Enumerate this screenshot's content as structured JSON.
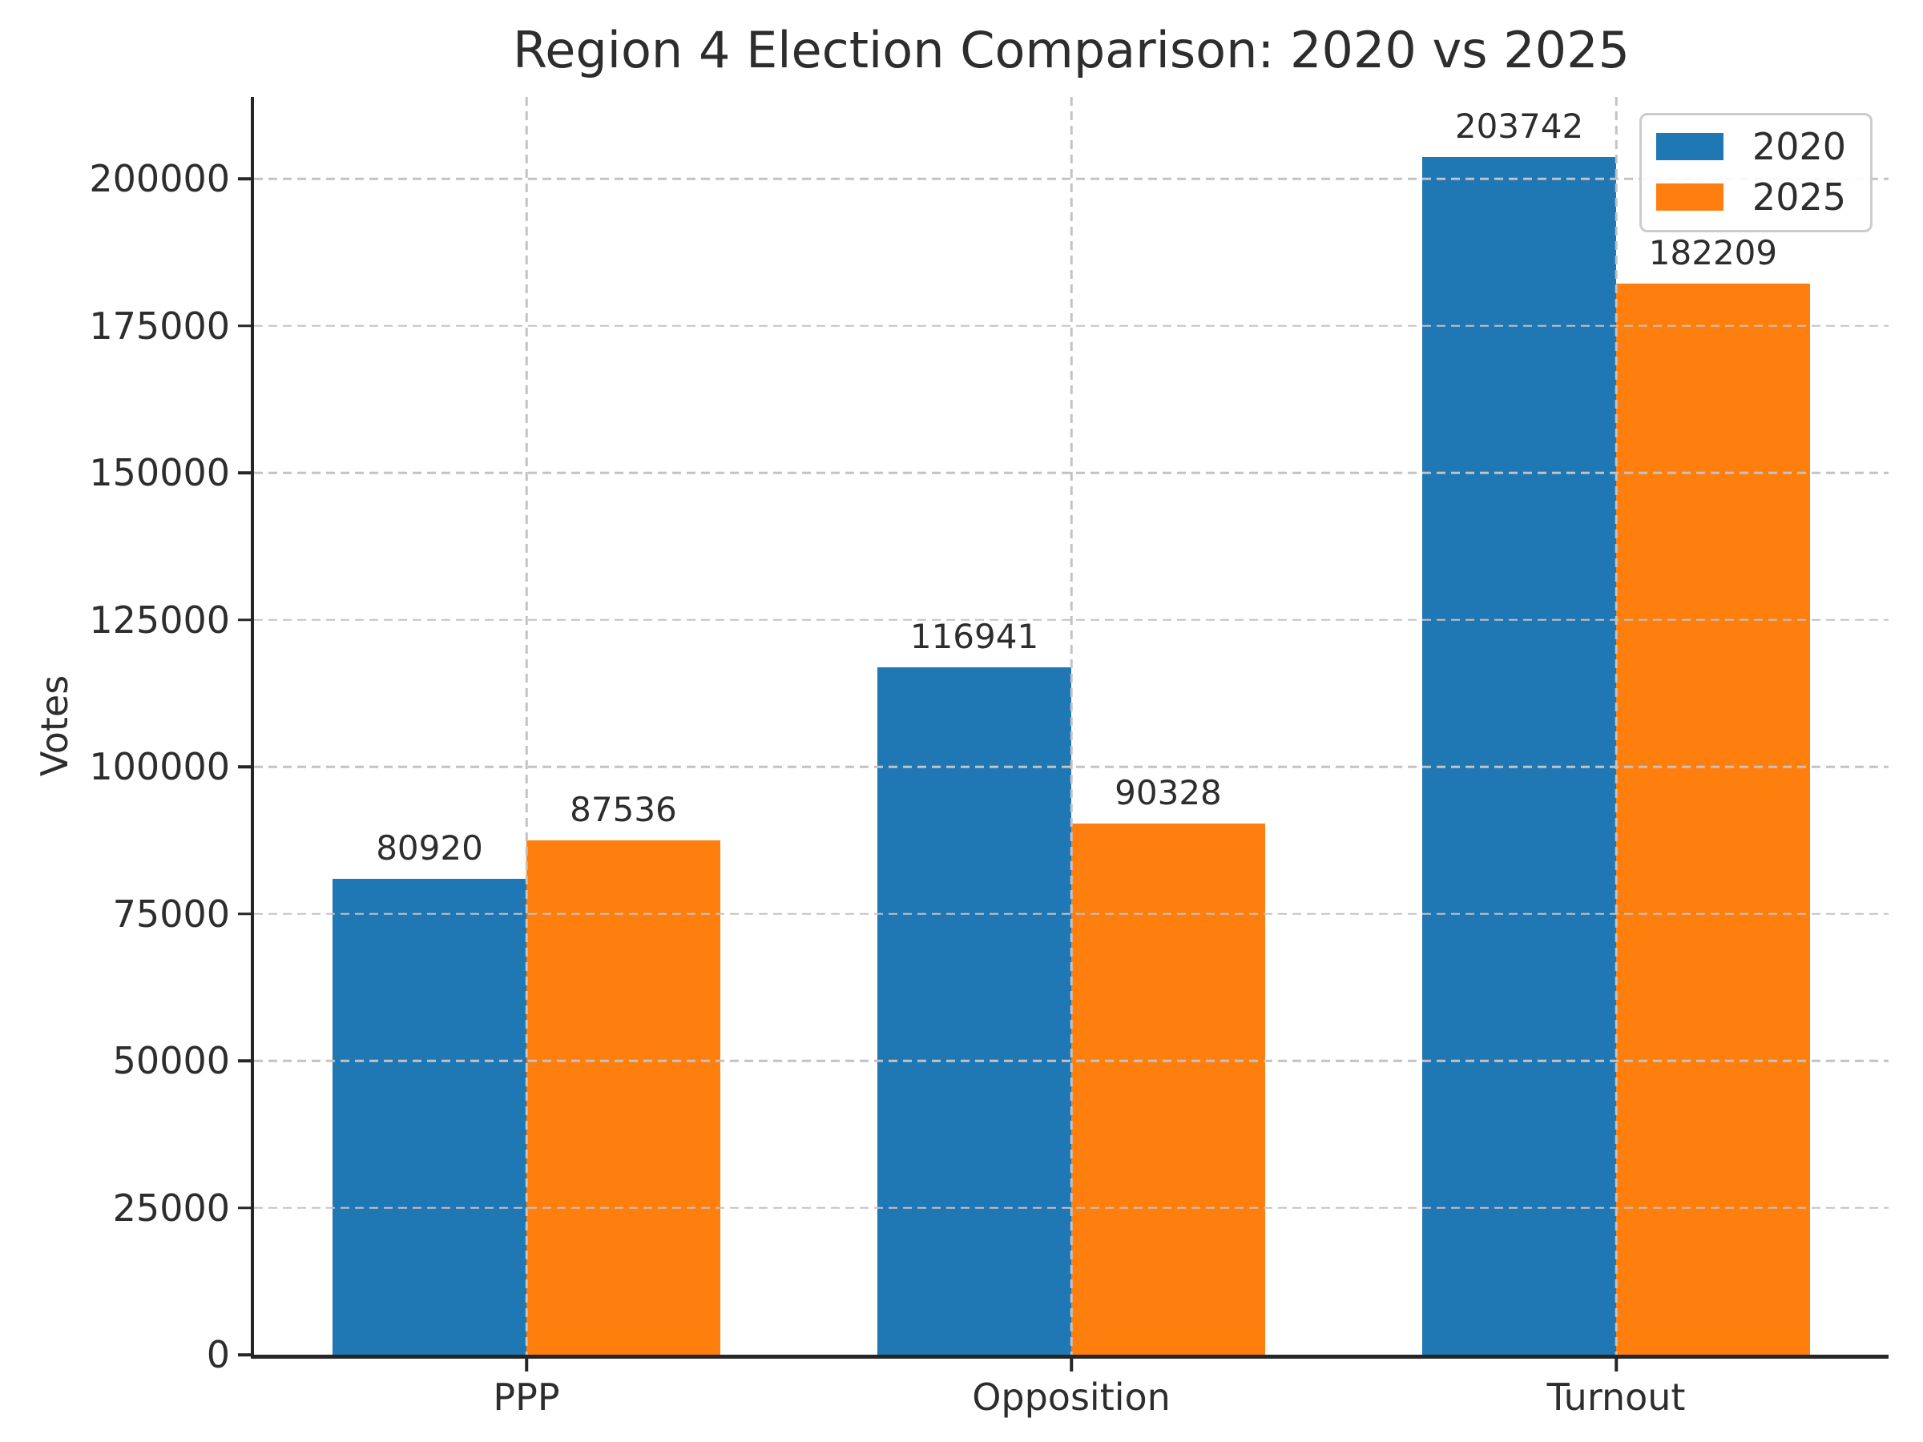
{
  "chart_data": {
    "type": "bar",
    "title": "Region 4 Election Comparison: 2020 vs 2025",
    "xlabel": "",
    "ylabel": "Votes",
    "categories": [
      "PPP",
      "Opposition",
      "Turnout"
    ],
    "series": [
      {
        "name": "2020",
        "color": "#1f77b4",
        "values": [
          80920,
          116941,
          203742
        ],
        "labels": [
          "80920",
          "116941",
          "203742"
        ]
      },
      {
        "name": "2025",
        "color": "#ff7f0e",
        "values": [
          87536,
          90328,
          182209
        ],
        "labels": [
          "87536",
          "90328",
          "182209"
        ]
      }
    ],
    "ylim": [
      0,
      213929
    ],
    "yticks": [
      {
        "value": 0,
        "label": "0"
      },
      {
        "value": 25000,
        "label": "25000"
      },
      {
        "value": 50000,
        "label": "50000"
      },
      {
        "value": 75000,
        "label": "75000"
      },
      {
        "value": 100000,
        "label": "100000"
      },
      {
        "value": 125000,
        "label": "125000"
      },
      {
        "value": 150000,
        "label": "150000"
      },
      {
        "value": 175000,
        "label": "175000"
      },
      {
        "value": 200000,
        "label": "200000"
      }
    ],
    "grid": {
      "horizontal": true,
      "vertical": true,
      "style": "dashed",
      "color": "#c3c3c3"
    },
    "legend": {
      "position": "upper right",
      "entries": [
        {
          "label": "2020",
          "color": "#1f77b4"
        },
        {
          "label": "2025",
          "color": "#ff7f0e"
        }
      ]
    },
    "bar_value_labels": true
  }
}
